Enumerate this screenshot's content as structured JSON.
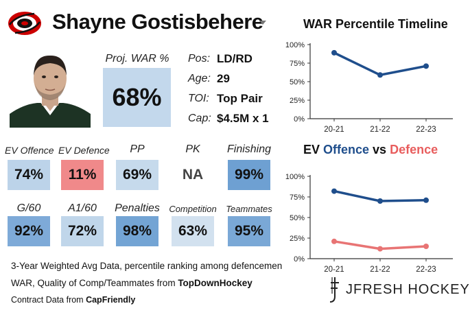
{
  "header": {
    "player_name": "Shayne Gostisbehere",
    "logo_icon": "hurricanes-logo-icon",
    "dropdown_icon": "chevron-down-icon"
  },
  "photo": {
    "icon": "player-headshot-icon"
  },
  "proj_war": {
    "label": "Proj. WAR %",
    "value": "68%",
    "color": "#c3d8ec"
  },
  "info": [
    {
      "label": "Pos:",
      "value": "LD/RD"
    },
    {
      "label": "Age:",
      "value": "29"
    },
    {
      "label": "TOI:",
      "value": "Top Pair"
    },
    {
      "label": "Cap:",
      "value": "$4.5M x 1"
    }
  ],
  "stats_row1": [
    {
      "label": "EV Offence",
      "value": "74%",
      "color": "#bcd3e9"
    },
    {
      "label": "EV Defence",
      "value": "11%",
      "color": "#f0898a"
    },
    {
      "label": "PP",
      "value": "69%",
      "color": "#c6daec"
    },
    {
      "label": "PK",
      "value": "NA",
      "color": "#ffffff"
    },
    {
      "label": "Finishing",
      "value": "99%",
      "color": "#6ea0d2"
    }
  ],
  "stats_row2": [
    {
      "label": "G/60",
      "value": "92%",
      "color": "#7eaad8"
    },
    {
      "label": "A1/60",
      "value": "72%",
      "color": "#c0d6ea"
    },
    {
      "label": "Penalties",
      "value": "98%",
      "color": "#73a4d4"
    },
    {
      "label": "Competition",
      "value": "63%",
      "color": "#d2e1ef"
    },
    {
      "label": "Teammates",
      "value": "95%",
      "color": "#7aa8d6"
    }
  ],
  "footer": {
    "line1": "3-Year Weighted Avg Data, percentile ranking among defencemen",
    "line2_prefix": "WAR, Quality of Comp/Teammates from ",
    "line2_bold": "TopDownHockey",
    "line3_prefix": "Contract Data from ",
    "line3_bold": "CapFriendly"
  },
  "brand": {
    "text": "JFRESH HOCKEY",
    "icon": "jfresh-logo-icon"
  },
  "chart_data": [
    {
      "type": "line",
      "title": "WAR Percentile Timeline",
      "categories": [
        "20-21",
        "21-22",
        "22-23"
      ],
      "ylim": [
        0,
        100
      ],
      "yticks": [
        "0%",
        "25%",
        "50%",
        "75%",
        "100%"
      ],
      "grid": false,
      "series": [
        {
          "values": [
            89,
            59,
            71
          ],
          "color": "#1f4e8c"
        }
      ]
    },
    {
      "type": "line",
      "title_parts": [
        "EV ",
        "Offence",
        " vs ",
        "Defence"
      ],
      "title_colors": [
        "#111111",
        "#1f4e8c",
        "#111111",
        "#e85d5d"
      ],
      "categories": [
        "20-21",
        "21-22",
        "22-23"
      ],
      "ylim": [
        0,
        100
      ],
      "yticks": [
        "0%",
        "25%",
        "50%",
        "75%",
        "100%"
      ],
      "grid": false,
      "series": [
        {
          "name": "Offence",
          "values": [
            82,
            70,
            71
          ],
          "color": "#1f4e8c"
        },
        {
          "name": "Defence",
          "values": [
            21,
            12,
            15
          ],
          "color": "#e87474"
        }
      ]
    }
  ]
}
